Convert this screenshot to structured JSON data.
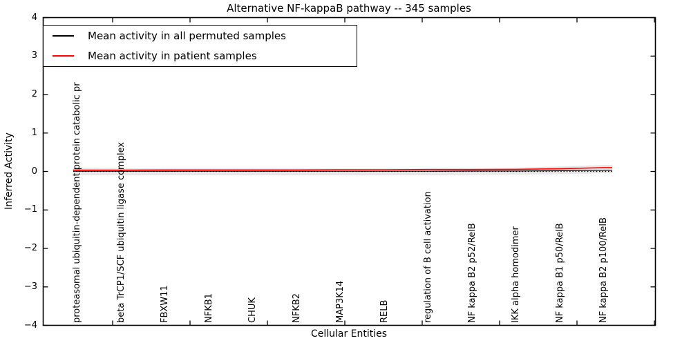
{
  "chart_data": {
    "type": "line",
    "title": "Alternative NF-kappaB pathway -- 345 samples",
    "xlabel": "Cellular Entities",
    "ylabel": "Inferred Activity",
    "ylim": [
      -4,
      4
    ],
    "yticks": [
      "4",
      "3",
      "2",
      "1",
      "0",
      "−1",
      "−2",
      "−3",
      "−4"
    ],
    "grid": false,
    "legend_position": "upper left",
    "categories": [
      "proteasomal ubiquitin-dependent protein catabolic pr",
      "beta TrCP1/SCF ubiquitin ligase complex",
      "FBXW11",
      "NFKB1",
      "CHUK",
      "NFKB2",
      "MAP3K14",
      "RELB",
      "regulation of B cell activation",
      "NF kappa B2 p52/RelB",
      "IKK alpha homodimer",
      "NF kappa B1 p50/RelB",
      "NF kappa B2 p100/RelB"
    ],
    "series": [
      {
        "name": "Mean activity in all permuted samples",
        "color": "#000000",
        "style": "solid",
        "values": [
          0.005,
          0.005,
          0.005,
          0.005,
          0.005,
          0.005,
          0.005,
          0.005,
          0.005,
          0.01,
          0.01,
          0.02,
          0.03
        ]
      },
      {
        "name": "Mean activity in patient samples",
        "color": "#ff0000",
        "style": "solid",
        "values": [
          0.035,
          0.035,
          0.04,
          0.04,
          0.04,
          0.04,
          0.045,
          0.045,
          0.05,
          0.05,
          0.055,
          0.07,
          0.1
        ]
      }
    ],
    "zero_line": {
      "value": 0,
      "color": "#000000",
      "style": "dotted"
    },
    "band": {
      "name": "permuted-samples-spread",
      "color": "#e8e8e8",
      "upper": [
        0.1,
        0.08,
        0.08,
        0.08,
        0.08,
        0.08,
        0.08,
        0.085,
        0.09,
        0.09,
        0.1,
        0.13,
        0.17
      ],
      "lower": [
        -0.1,
        -0.1,
        -0.1,
        -0.1,
        -0.1,
        -0.1,
        -0.1,
        -0.1,
        -0.1,
        -0.09,
        -0.08,
        -0.07,
        -0.05
      ]
    }
  }
}
